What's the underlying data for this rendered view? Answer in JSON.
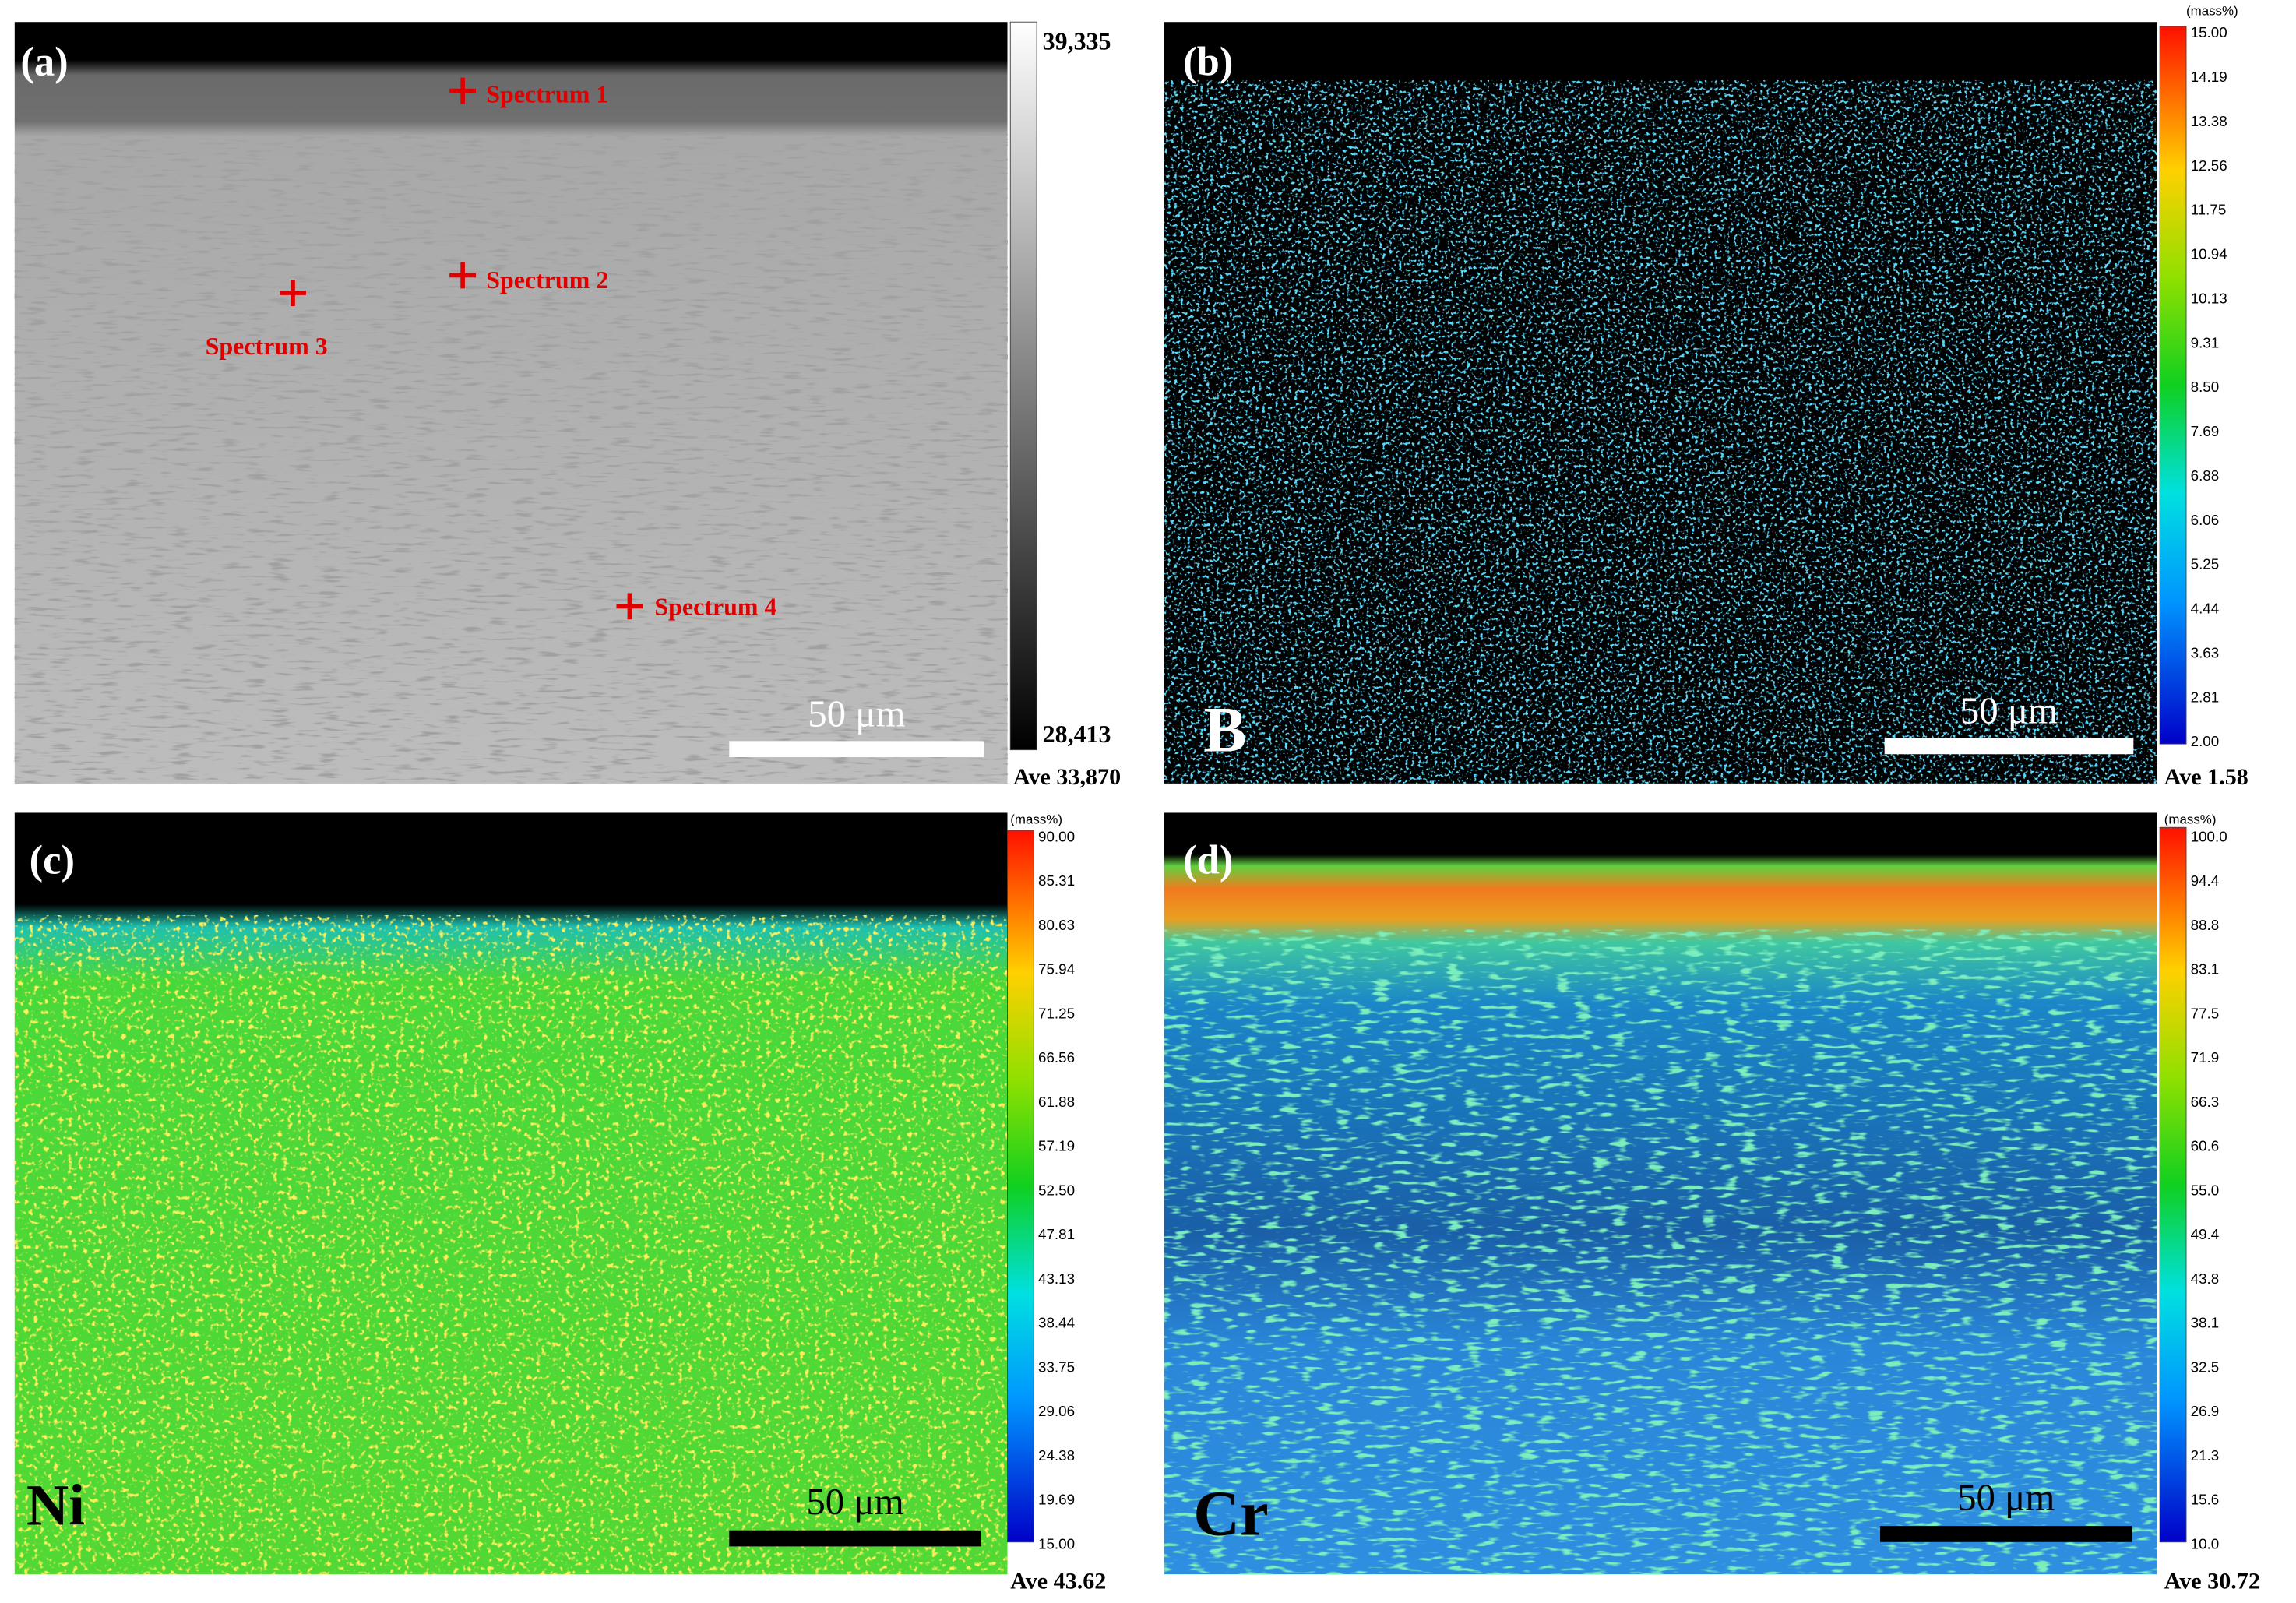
{
  "panels": [
    {
      "label": "(a)",
      "spectra": [
        "Spectrum 1",
        "Spectrum 2",
        "Spectrum 3",
        "Spectrum 4"
      ],
      "colorbar": {
        "ticks": [
          "39,335",
          "28,413"
        ]
      },
      "ave": "Ave 33,870",
      "scale_bar": "50 μm"
    },
    {
      "label": "(b)",
      "element": "B",
      "colorbar": {
        "unit": "(mass%)",
        "ticks": [
          "15.00",
          "14.19",
          "13.38",
          "12.56",
          "11.75",
          "10.94",
          "10.13",
          "9.31",
          "8.50",
          "7.69",
          "6.88",
          "6.06",
          "5.25",
          "4.44",
          "3.63",
          "2.81",
          "2.00"
        ]
      },
      "ave": "Ave 1.58",
      "scale_bar": "50 μm"
    },
    {
      "label": "(c)",
      "element": "Ni",
      "colorbar": {
        "unit": "(mass%)",
        "ticks": [
          "90.00",
          "85.31",
          "80.63",
          "75.94",
          "71.25",
          "66.56",
          "61.88",
          "57.19",
          "52.50",
          "47.81",
          "43.13",
          "38.44",
          "33.75",
          "29.06",
          "24.38",
          "19.69",
          "15.00"
        ]
      },
      "ave": "Ave 43.62",
      "scale_bar": "50 μm"
    },
    {
      "label": "(d)",
      "element": "Cr",
      "colorbar": {
        "unit": "(mass%)",
        "ticks": [
          "100.0",
          "94.4",
          "88.8",
          "83.1",
          "77.5",
          "71.9",
          "66.3",
          "60.6",
          "55.0",
          "49.4",
          "43.8",
          "38.1",
          "32.5",
          "26.9",
          "21.3",
          "15.6",
          "10.0"
        ]
      },
      "ave": "Ave 30.72",
      "scale_bar": "50 μm"
    }
  ]
}
